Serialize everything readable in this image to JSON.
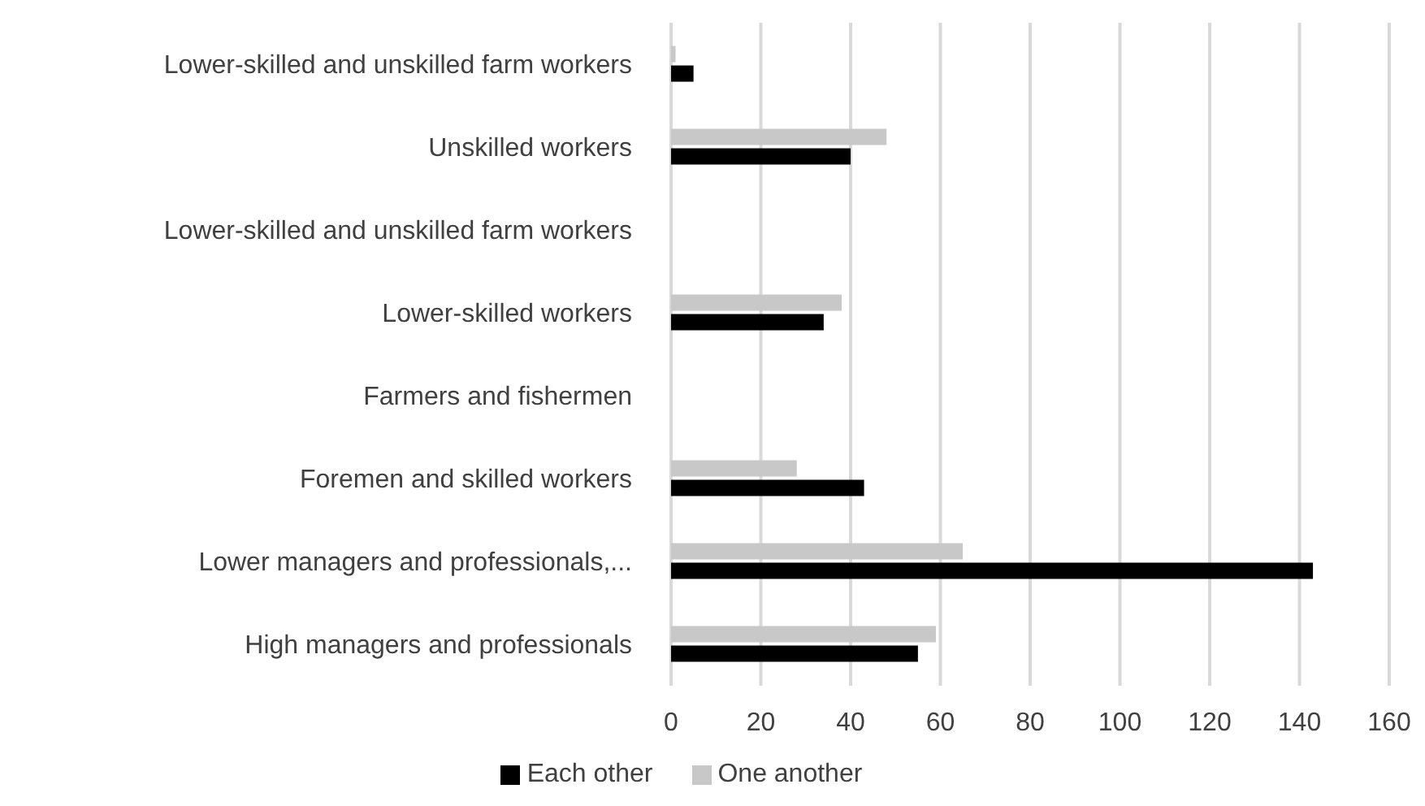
{
  "chart_data": {
    "type": "bar",
    "orientation": "horizontal",
    "categories": [
      "Lower-skilled and unskilled farm workers",
      "Unskilled workers",
      "Lower-skilled and unskilled farm workers",
      "Lower-skilled workers",
      "Farmers and fishermen",
      "Foremen and skilled workers",
      "Lower managers and professionals,...",
      "High managers and professionals"
    ],
    "series": [
      {
        "name": "One another",
        "color": "#c8c8c8",
        "values": [
          1,
          48,
          null,
          38,
          null,
          28,
          65,
          59
        ]
      },
      {
        "name": "Each other",
        "color": "#000000",
        "values": [
          5,
          40,
          null,
          34,
          null,
          43,
          143,
          55
        ]
      }
    ],
    "xlim": [
      0,
      160
    ],
    "xticks": [
      0,
      20,
      40,
      60,
      80,
      100,
      120,
      140,
      160
    ],
    "grid": "x",
    "legend": "bottom"
  }
}
